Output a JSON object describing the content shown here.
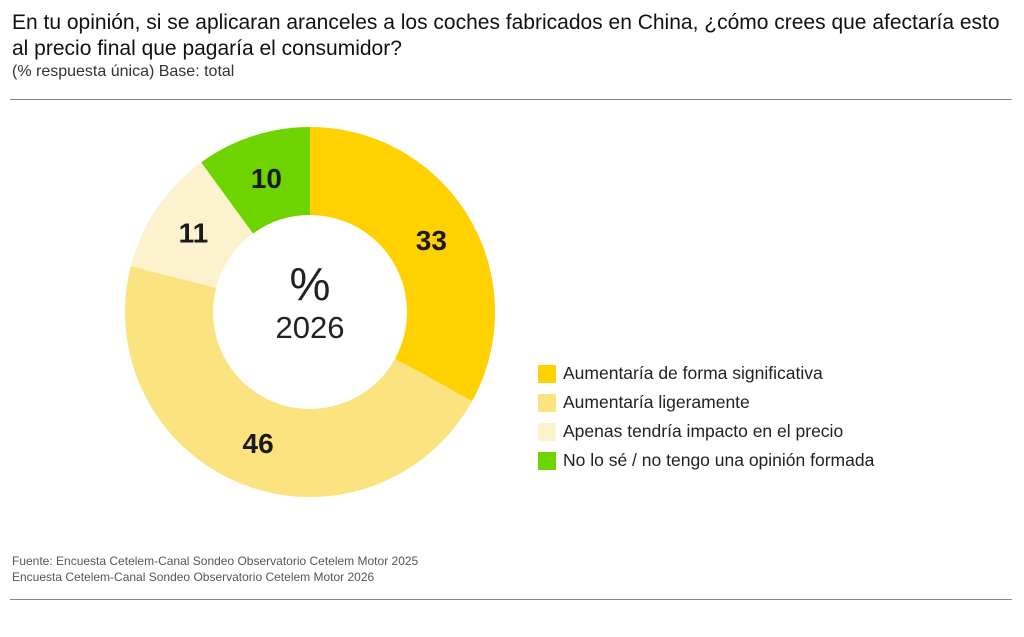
{
  "chart_data": {
    "type": "donut",
    "title": "En tu opinión, si se aplicaran aranceles a los coches fabricados en China, ¿cómo crees que afectaría esto al precio final que pagaría el consumidor?",
    "subtitle": "(% respuesta única) Base: total",
    "center_label_top": "%",
    "center_label_bottom": "2026",
    "categories": [
      "Aumentaría de forma significativa",
      "Aumentaría ligeramente",
      "Apenas tendría impacto en el precio",
      "No lo sé / no tengo una opinión formada"
    ],
    "values": [
      33,
      46,
      11,
      10
    ],
    "colors": [
      "#FFD100",
      "#FBE37F",
      "#FDF2CE",
      "#6DD400"
    ],
    "legend_position": "right"
  },
  "source": {
    "line1": "Fuente: Encuesta Cetelem-Canal Sondeo Observatorio Cetelem Motor 2025",
    "line2": "Encuesta Cetelem-Canal Sondeo Observatorio Cetelem Motor 2026"
  }
}
